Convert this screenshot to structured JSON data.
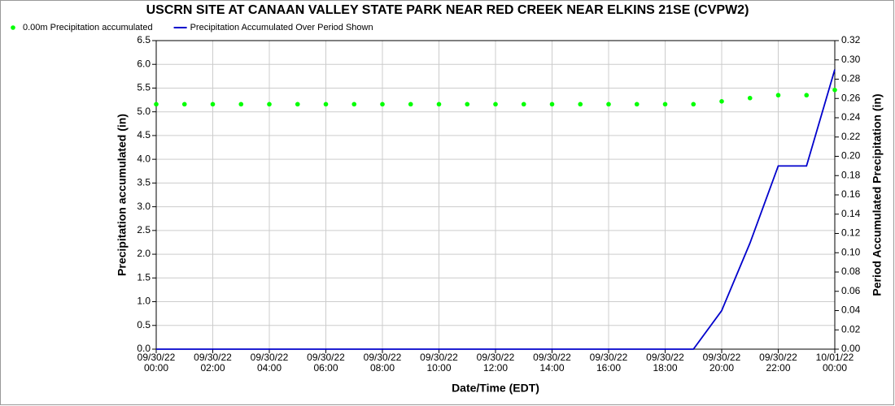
{
  "chart_data": {
    "type": "line",
    "title": "USCRN SITE AT CANAAN VALLEY STATE PARK NEAR RED CREEK NEAR ELKINS 21SE (CVPW2)",
    "x_label": "Date/Time (EDT)",
    "y_label": "Precipitation accumulated (in)",
    "y2_label": "Period Accumulated Precipitation (in)",
    "categories": [
      "09/30/22\n00:00",
      null,
      "09/30/22\n02:00",
      null,
      "09/30/22\n04:00",
      null,
      "09/30/22\n06:00",
      null,
      "09/30/22\n08:00",
      null,
      "09/30/22\n10:00",
      null,
      "09/30/22\n12:00",
      null,
      "09/30/22\n14:00",
      null,
      "09/30/22\n16:00",
      null,
      "09/30/22\n18:00",
      null,
      "09/30/22\n20:00",
      null,
      "09/30/22\n22:00",
      null,
      "10/01/22\n00:00"
    ],
    "series": [
      {
        "name": "0.00m Precipitation accumulated",
        "color": "#00ff00",
        "marker": "dot",
        "axis": "y",
        "values": [
          5.16,
          5.16,
          5.16,
          5.16,
          5.16,
          5.16,
          5.16,
          5.16,
          5.16,
          5.16,
          5.16,
          5.16,
          5.16,
          5.16,
          5.16,
          5.16,
          5.16,
          5.16,
          5.16,
          5.16,
          5.22,
          5.29,
          5.35,
          5.35,
          5.46
        ]
      },
      {
        "name": "Precipitation Accumulated Over Period Shown",
        "color": "#0000cc",
        "marker": "line",
        "axis": "y2",
        "values": [
          0,
          0,
          0,
          0,
          0,
          0,
          0,
          0,
          0,
          0,
          0,
          0,
          0,
          0,
          0,
          0,
          0,
          0,
          0,
          0,
          0.04,
          0.11,
          0.19,
          0.19,
          0.29
        ]
      }
    ],
    "ylim": [
      0,
      6.5
    ],
    "yticks": [
      {
        "value": 0,
        "label": "0.0"
      },
      0.5,
      {
        "value": 1,
        "label": "1.0"
      },
      1.5,
      {
        "value": 2,
        "label": "2.0"
      },
      2.5,
      {
        "value": 3,
        "label": "3.0"
      },
      3.5,
      {
        "value": 4,
        "label": "4.0"
      },
      4.5,
      {
        "value": 5,
        "label": "5.0"
      },
      5.5,
      {
        "value": 6,
        "label": "6.0"
      },
      6.5
    ],
    "y2lim": [
      0,
      0.32
    ],
    "y2ticks": [
      {
        "value": 0,
        "label": "0.00"
      },
      0.02,
      0.04,
      0.06,
      0.08,
      {
        "value": 0.1,
        "label": "0.10"
      },
      0.12,
      0.14,
      0.16,
      0.18,
      {
        "value": 0.2,
        "label": "0.20"
      },
      0.22,
      0.24,
      0.26,
      0.28,
      {
        "value": 0.3,
        "label": "0.30"
      },
      0.32
    ],
    "grid": true
  }
}
